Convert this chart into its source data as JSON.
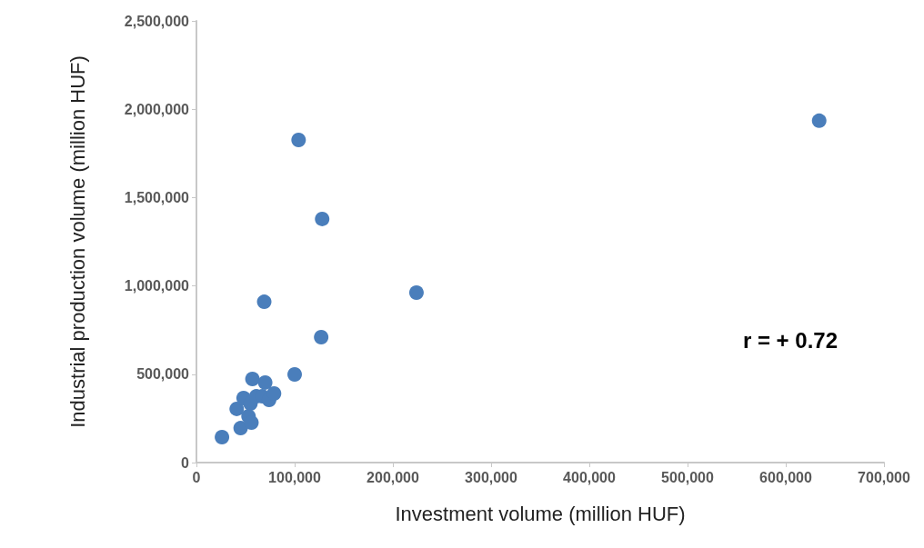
{
  "chart_data": {
    "type": "scatter",
    "xlabel": "Investment volume (million HUF)",
    "ylabel": "Industrial production volume (million HUF)",
    "x": [
      26000,
      45000,
      41000,
      48000,
      57000,
      53000,
      56000,
      55000,
      61000,
      67000,
      70000,
      74000,
      79000,
      100000,
      69000,
      104000,
      128000,
      127000,
      224000,
      634000
    ],
    "values": [
      144000,
      195000,
      304000,
      365000,
      473000,
      262000,
      226000,
      334000,
      375000,
      375000,
      453000,
      355000,
      391000,
      499000,
      910000,
      1826000,
      1379000,
      710000,
      962000,
      1935000
    ],
    "color": "#4a7ebb",
    "marker": "circle",
    "xlim": [
      0,
      700000
    ],
    "xticks": [
      {
        "value": 0,
        "label": "0"
      },
      {
        "value": 100000,
        "label": "100,000"
      },
      {
        "value": 200000,
        "label": "200,000"
      },
      {
        "value": 300000,
        "label": "300,000"
      },
      {
        "value": 400000,
        "label": "400,000"
      },
      {
        "value": 500000,
        "label": "500,000"
      },
      {
        "value": 600000,
        "label": "600,000"
      },
      {
        "value": 700000,
        "label": "700,000"
      }
    ],
    "ylim": [
      0,
      2500000
    ],
    "yticks": [
      {
        "value": 0,
        "label": "0"
      },
      {
        "value": 500000,
        "label": "500,000"
      },
      {
        "value": 1000000,
        "label": "1,000,000"
      },
      {
        "value": 1500000,
        "label": "1,500,000"
      },
      {
        "value": 2000000,
        "label": "2,000,000"
      },
      {
        "value": 2500000,
        "label": "2,500,000"
      }
    ],
    "annotations": [
      "r = + 0.72"
    ],
    "grid": false
  }
}
